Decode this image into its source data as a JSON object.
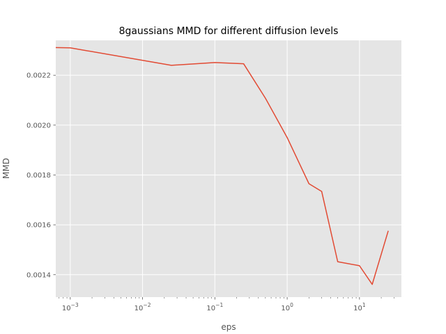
{
  "chart_data": {
    "type": "line",
    "title": "8gaussians MMD for different diffusion levels",
    "xlabel": "eps",
    "ylabel": "MMD",
    "xscale": "log",
    "xlim": [
      0.00063,
      38
    ],
    "ylim": [
      0.00131,
      0.00234
    ],
    "grid": true,
    "x_ticks": [
      {
        "value": 0.001,
        "mantissa": "10",
        "exponent": "−3"
      },
      {
        "value": 0.01,
        "mantissa": "10",
        "exponent": "−2"
      },
      {
        "value": 0.1,
        "mantissa": "10",
        "exponent": "−1"
      },
      {
        "value": 1,
        "mantissa": "10",
        "exponent": "0"
      },
      {
        "value": 10,
        "mantissa": "10",
        "exponent": "1"
      }
    ],
    "y_ticks": [
      {
        "value": 0.0014,
        "label": "0.0014"
      },
      {
        "value": 0.0016,
        "label": "0.0016"
      },
      {
        "value": 0.0018,
        "label": "0.0018"
      },
      {
        "value": 0.002,
        "label": "0.0020"
      },
      {
        "value": 0.0022,
        "label": "0.0022"
      }
    ],
    "series": [
      {
        "color": "#E24A33",
        "x": [
          0.00063,
          0.001,
          0.025,
          0.1,
          0.25,
          0.5,
          1,
          2,
          3,
          5,
          10,
          15,
          25
        ],
        "y": [
          0.002311,
          0.00231,
          0.00224,
          0.002251,
          0.002246,
          0.002108,
          0.00195,
          0.001765,
          0.001734,
          0.001452,
          0.001436,
          0.001361,
          0.001576
        ]
      }
    ]
  }
}
